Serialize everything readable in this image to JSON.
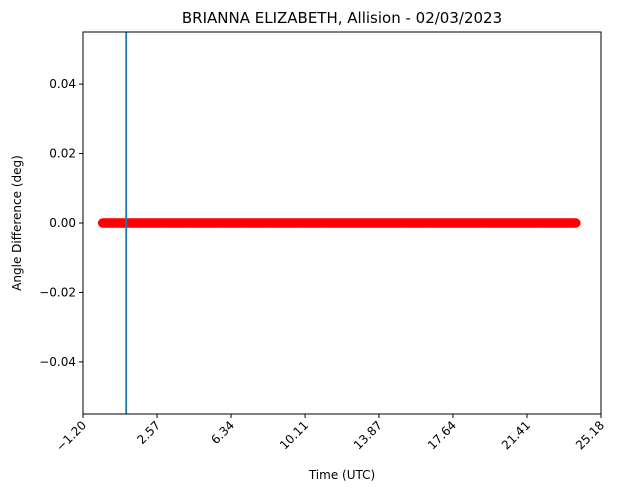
{
  "chart_data": {
    "type": "scatter",
    "title": "BRIANNA ELIZABETH, Allision - 02/03/2023",
    "xlabel": "Time (UTC)",
    "ylabel": "Angle Difference (deg)",
    "xlim": [
      -1.2,
      25.18
    ],
    "ylim": [
      -0.055,
      0.055
    ],
    "xticks": [
      -1.2,
      2.57,
      6.34,
      10.11,
      13.87,
      17.64,
      21.41,
      25.18
    ],
    "xtick_labels": [
      "−1.20",
      "2.57",
      "6.34",
      "10.11",
      "13.87",
      "17.64",
      "21.41",
      "25.18"
    ],
    "yticks": [
      0.04,
      0.02,
      0.0,
      -0.02,
      -0.04
    ],
    "ytick_labels": [
      "0.04",
      "0.02",
      "0.00",
      "−0.02",
      "−0.04"
    ],
    "xtick_rotation": 45,
    "grid": false,
    "series": [
      {
        "color": "#ff0000",
        "x_start": -0.2,
        "x_end": 23.9,
        "x_step": 0.05,
        "y": 0.0
      }
    ],
    "vline": {
      "x": 1.0,
      "color": "#1f77b4"
    }
  }
}
